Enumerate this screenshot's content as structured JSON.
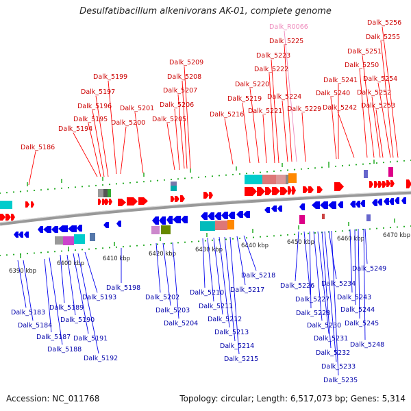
{
  "title": "Desulfatibacillum alkenivorans AK-01, complete genome",
  "footer": {
    "accession": "Accession: NC_011768",
    "summary": "Topology: circular; Length: 6,517,073 bp; Genes: 5,314"
  },
  "colors": {
    "forward": "#ff0000",
    "reverse": "#0000ee",
    "forward_label": "#cc0000",
    "reverse_label": "#0000aa",
    "rna_label": "#ee88bb",
    "backbone": "#999999",
    "tick": "#22aa22"
  },
  "ticks": [
    "6390 kbp",
    "6400 kbp",
    "6410 kbp",
    "6420 kbp",
    "6430 kbp",
    "6440 kbp",
    "6450 kbp",
    "6460 kbp",
    "6470 kbp"
  ],
  "forward_labels": [
    "Dalk_5186",
    "Dalk_5194",
    "Dalk_5195",
    "Dalk_5196",
    "Dalk_5197",
    "Dalk_5199",
    "Dalk_5200",
    "Dalk_5201",
    "Dalk_5205",
    "Dalk_5206",
    "Dalk_5207",
    "Dalk_5208",
    "Dalk_5209",
    "Dalk_5216",
    "Dalk_5219",
    "Dalk_5220",
    "Dalk_5221",
    "Dalk_5222",
    "Dalk_5223",
    "Dalk_5224",
    "Dalk_5225",
    "Dalk_R0066",
    "Dalk_5229",
    "Dalk_5240",
    "Dalk_5241",
    "Dalk_5242",
    "Dalk_5250",
    "Dalk_5251",
    "Dalk_5252",
    "Dalk_5253",
    "Dalk_5254",
    "Dalk_5255",
    "Dalk_5256"
  ],
  "reverse_labels": [
    "Dalk_5183",
    "Dalk_5184",
    "Dalk_5187",
    "Dalk_5188",
    "Dalk_5189",
    "Dalk_5190",
    "Dalk_5191",
    "Dalk_5192",
    "Dalk_5193",
    "Dalk_5198",
    "Dalk_5202",
    "Dalk_5203",
    "Dalk_5204",
    "Dalk_5210",
    "Dalk_5211",
    "Dalk_5212",
    "Dalk_5213",
    "Dalk_5214",
    "Dalk_5215",
    "Dalk_5217",
    "Dalk_5218",
    "Dalk_5226",
    "Dalk_5227",
    "Dalk_5228",
    "Dalk_5230",
    "Dalk_5231",
    "Dalk_5232",
    "Dalk_5233",
    "Dalk_5234",
    "Dalk_5235",
    "Dalk_5243",
    "Dalk_5244",
    "Dalk_5245",
    "Dalk_5248",
    "Dalk_5249"
  ]
}
